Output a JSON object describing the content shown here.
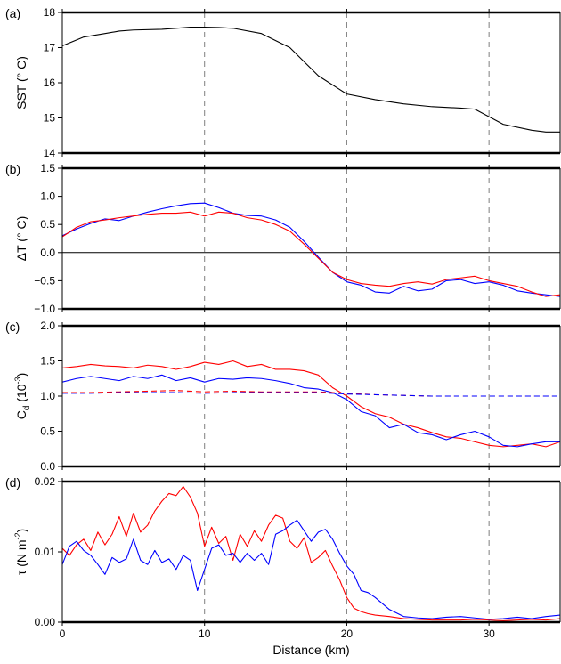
{
  "chart_data": [
    {
      "type": "line",
      "panel_label": "(a)",
      "ylabel": "SST (° C)",
      "xlabel": "",
      "xlim": [
        0,
        35
      ],
      "ylim": [
        14,
        18
      ],
      "yticks": [
        14,
        15,
        16,
        17,
        18
      ],
      "xticks": [
        0,
        10,
        20,
        30
      ],
      "grid": "vertical dashed at 10, 20, 30",
      "series": [
        {
          "color": "#000000",
          "dash": "solid",
          "x": [
            0,
            1.5,
            3,
            4,
            5,
            7,
            8,
            9,
            10,
            11,
            12,
            14,
            16,
            18,
            20,
            22,
            24,
            26,
            28,
            29,
            31,
            33,
            34,
            35
          ],
          "y": [
            17.05,
            17.3,
            17.4,
            17.47,
            17.5,
            17.52,
            17.55,
            17.58,
            17.58,
            17.57,
            17.55,
            17.4,
            17.0,
            16.2,
            15.68,
            15.52,
            15.4,
            15.32,
            15.28,
            15.25,
            14.82,
            14.65,
            14.6,
            14.6
          ]
        }
      ]
    },
    {
      "type": "line",
      "panel_label": "(b)",
      "ylabel": "ΔT (° C)",
      "xlabel": "",
      "xlim": [
        0,
        35
      ],
      "ylim": [
        -1.0,
        1.5
      ],
      "yticks": [
        -1.0,
        -0.5,
        0.0,
        0.5,
        1.0,
        1.5
      ],
      "ytick_labels": [
        "−1.0",
        "−0.5",
        "0.0",
        "0.5",
        "1.0",
        "1.5"
      ],
      "xticks": [
        0,
        10,
        20,
        30
      ],
      "reference_line": 0,
      "grid": "vertical dashed at 10, 20, 30",
      "series": [
        {
          "color": "#0000ff",
          "dash": "solid",
          "x": [
            0,
            1,
            2,
            3,
            4,
            5,
            6,
            7,
            8,
            9,
            10,
            11,
            12,
            13,
            14,
            15,
            16,
            17,
            18,
            19,
            20,
            21,
            22,
            23,
            24,
            25,
            26,
            27,
            28,
            29,
            30,
            31,
            32,
            33,
            34,
            35
          ],
          "y": [
            0.3,
            0.42,
            0.52,
            0.6,
            0.57,
            0.65,
            0.72,
            0.78,
            0.83,
            0.87,
            0.88,
            0.8,
            0.7,
            0.66,
            0.65,
            0.58,
            0.45,
            0.2,
            -0.08,
            -0.35,
            -0.52,
            -0.58,
            -0.7,
            -0.72,
            -0.6,
            -0.68,
            -0.65,
            -0.5,
            -0.48,
            -0.55,
            -0.52,
            -0.58,
            -0.68,
            -0.72,
            -0.75,
            -0.78
          ]
        },
        {
          "color": "#ff0000",
          "dash": "solid",
          "x": [
            0,
            1,
            2,
            3,
            4,
            5,
            6,
            7,
            8,
            9,
            10,
            11,
            12,
            13,
            14,
            15,
            16,
            17,
            18,
            19,
            20,
            21,
            22,
            23,
            24,
            25,
            26,
            27,
            28,
            29,
            30,
            31,
            32,
            33,
            34,
            35
          ],
          "y": [
            0.28,
            0.45,
            0.55,
            0.58,
            0.62,
            0.65,
            0.68,
            0.7,
            0.7,
            0.72,
            0.65,
            0.72,
            0.7,
            0.62,
            0.58,
            0.5,
            0.38,
            0.15,
            -0.1,
            -0.35,
            -0.48,
            -0.55,
            -0.58,
            -0.6,
            -0.55,
            -0.52,
            -0.56,
            -0.48,
            -0.45,
            -0.42,
            -0.5,
            -0.55,
            -0.6,
            -0.7,
            -0.78,
            -0.75
          ]
        }
      ]
    },
    {
      "type": "line",
      "panel_label": "(c)",
      "ylabel": "C_d (10^-3)",
      "ylabel_main": "C",
      "ylabel_sub": "d",
      "ylabel_rest": " (10",
      "ylabel_sup": "-3",
      "ylabel_close": ")",
      "xlabel": "",
      "xlim": [
        0,
        35
      ],
      "ylim": [
        0.0,
        2.0
      ],
      "yticks": [
        0.0,
        0.5,
        1.0,
        1.5,
        2.0
      ],
      "xticks": [
        0,
        10,
        20,
        30
      ],
      "grid": "vertical dashed at 10, 20, 30",
      "series": [
        {
          "color": "#ff0000",
          "dash": "solid",
          "x": [
            0,
            1,
            2,
            3,
            4,
            5,
            6,
            7,
            8,
            9,
            10,
            11,
            12,
            13,
            14,
            15,
            16,
            17,
            18,
            19,
            20,
            21,
            22,
            23,
            24,
            25,
            26,
            27,
            28,
            29,
            30,
            31,
            32,
            33,
            34,
            35
          ],
          "y": [
            1.4,
            1.42,
            1.45,
            1.43,
            1.42,
            1.4,
            1.44,
            1.42,
            1.38,
            1.42,
            1.48,
            1.45,
            1.5,
            1.42,
            1.45,
            1.38,
            1.38,
            1.36,
            1.3,
            1.12,
            1.0,
            0.85,
            0.75,
            0.7,
            0.6,
            0.55,
            0.48,
            0.42,
            0.4,
            0.35,
            0.3,
            0.28,
            0.3,
            0.32,
            0.28,
            0.35
          ]
        },
        {
          "color": "#0000ff",
          "dash": "solid",
          "x": [
            0,
            1,
            2,
            3,
            4,
            5,
            6,
            7,
            8,
            9,
            10,
            11,
            12,
            13,
            14,
            15,
            16,
            17,
            18,
            19,
            20,
            21,
            22,
            23,
            24,
            25,
            26,
            27,
            28,
            29,
            30,
            31,
            32,
            33,
            34,
            35
          ],
          "y": [
            1.2,
            1.25,
            1.28,
            1.25,
            1.22,
            1.28,
            1.25,
            1.3,
            1.22,
            1.26,
            1.2,
            1.25,
            1.24,
            1.26,
            1.25,
            1.22,
            1.18,
            1.12,
            1.1,
            1.05,
            0.95,
            0.78,
            0.72,
            0.55,
            0.6,
            0.48,
            0.45,
            0.38,
            0.45,
            0.5,
            0.42,
            0.3,
            0.28,
            0.32,
            0.35,
            0.35
          ]
        },
        {
          "color": "#ff0000",
          "dash": "dashed",
          "x": [
            0,
            2,
            4,
            6,
            8,
            10,
            12,
            14,
            16,
            18,
            20,
            22,
            24,
            26,
            28,
            30,
            32,
            34,
            35
          ],
          "y": [
            1.05,
            1.05,
            1.06,
            1.07,
            1.08,
            1.06,
            1.07,
            1.06,
            1.06,
            1.06,
            1.04,
            1.02,
            1.01,
            1.0,
            1.0,
            1.0,
            1.0,
            1.0,
            1.0
          ]
        },
        {
          "color": "#0000ff",
          "dash": "dashed",
          "x": [
            0,
            2,
            4,
            6,
            8,
            10,
            12,
            14,
            16,
            18,
            20,
            22,
            24,
            26,
            28,
            30,
            32,
            34,
            35
          ],
          "y": [
            1.04,
            1.04,
            1.05,
            1.05,
            1.05,
            1.04,
            1.05,
            1.05,
            1.05,
            1.05,
            1.03,
            1.02,
            1.01,
            1.0,
            1.0,
            1.0,
            1.0,
            1.0,
            1.0
          ]
        }
      ]
    },
    {
      "type": "line",
      "panel_label": "(d)",
      "ylabel": "τ (N m^-2)",
      "ylabel_main": "τ (N m",
      "ylabel_sup": "-2",
      "ylabel_close": ")",
      "xlabel": "Distance (km)",
      "xlim": [
        0,
        35
      ],
      "ylim": [
        0.0,
        0.02
      ],
      "yticks": [
        0.0,
        0.01,
        0.02
      ],
      "ytick_labels": [
        "0.00",
        "0.01",
        "0.02"
      ],
      "xticks": [
        0,
        10,
        20,
        30
      ],
      "xtick_labels": [
        "0",
        "10",
        "20",
        "30"
      ],
      "grid": "vertical dashed at 10, 20, 30",
      "series": [
        {
          "color": "#ff0000",
          "dash": "solid",
          "x": [
            0,
            0.5,
            1,
            1.5,
            2,
            2.5,
            3,
            3.5,
            4,
            4.5,
            5,
            5.5,
            6,
            6.5,
            7,
            7.5,
            8,
            8.5,
            9,
            9.5,
            10,
            10.5,
            11,
            11.5,
            12,
            12.5,
            13,
            13.5,
            14,
            14.5,
            15,
            15.5,
            16,
            16.5,
            17,
            17.5,
            18,
            18.5,
            19,
            19.5,
            20,
            20.5,
            21,
            21.5,
            22,
            23,
            24,
            25,
            26,
            27,
            28,
            29,
            30,
            31,
            32,
            33,
            34,
            35
          ],
          "y": [
            0.0105,
            0.0095,
            0.011,
            0.0118,
            0.0102,
            0.0128,
            0.011,
            0.0125,
            0.015,
            0.0122,
            0.0155,
            0.0128,
            0.0138,
            0.0158,
            0.0172,
            0.0183,
            0.018,
            0.0193,
            0.0178,
            0.0155,
            0.0108,
            0.0135,
            0.0112,
            0.0122,
            0.0088,
            0.0125,
            0.0108,
            0.013,
            0.0115,
            0.0138,
            0.0152,
            0.0148,
            0.0115,
            0.0105,
            0.012,
            0.0085,
            0.0092,
            0.0102,
            0.008,
            0.006,
            0.0035,
            0.002,
            0.0015,
            0.0012,
            0.001,
            0.0008,
            0.0005,
            0.0004,
            0.0003,
            0.0003,
            0.0003,
            0.0004,
            0.0003,
            0.0002,
            0.0003,
            0.0004,
            0.0003,
            0.0005
          ]
        },
        {
          "color": "#0000ff",
          "dash": "solid",
          "x": [
            0,
            0.5,
            1,
            1.5,
            2,
            2.5,
            3,
            3.5,
            4,
            4.5,
            5,
            5.5,
            6,
            6.5,
            7,
            7.5,
            8,
            8.5,
            9,
            9.5,
            10,
            10.5,
            11,
            11.5,
            12,
            12.5,
            13,
            13.5,
            14,
            14.5,
            15,
            15.5,
            16,
            16.5,
            17,
            17.5,
            18,
            18.5,
            19,
            19.5,
            20,
            20.5,
            21,
            21.5,
            22,
            23,
            24,
            25,
            26,
            27,
            28,
            29,
            30,
            31,
            32,
            33,
            34,
            35
          ],
          "y": [
            0.0082,
            0.0108,
            0.0115,
            0.0102,
            0.0095,
            0.0082,
            0.0068,
            0.0092,
            0.0085,
            0.009,
            0.0118,
            0.0088,
            0.0082,
            0.0102,
            0.0085,
            0.009,
            0.0075,
            0.0095,
            0.0088,
            0.0045,
            0.0075,
            0.0105,
            0.011,
            0.0095,
            0.0098,
            0.0085,
            0.0098,
            0.0088,
            0.0098,
            0.0082,
            0.0125,
            0.013,
            0.0138,
            0.0145,
            0.013,
            0.0115,
            0.0128,
            0.0132,
            0.0118,
            0.0098,
            0.008,
            0.0068,
            0.0045,
            0.0042,
            0.0035,
            0.0018,
            0.0008,
            0.0006,
            0.0005,
            0.0007,
            0.0008,
            0.0006,
            0.0004,
            0.0005,
            0.0007,
            0.0005,
            0.0008,
            0.001
          ]
        }
      ]
    }
  ]
}
